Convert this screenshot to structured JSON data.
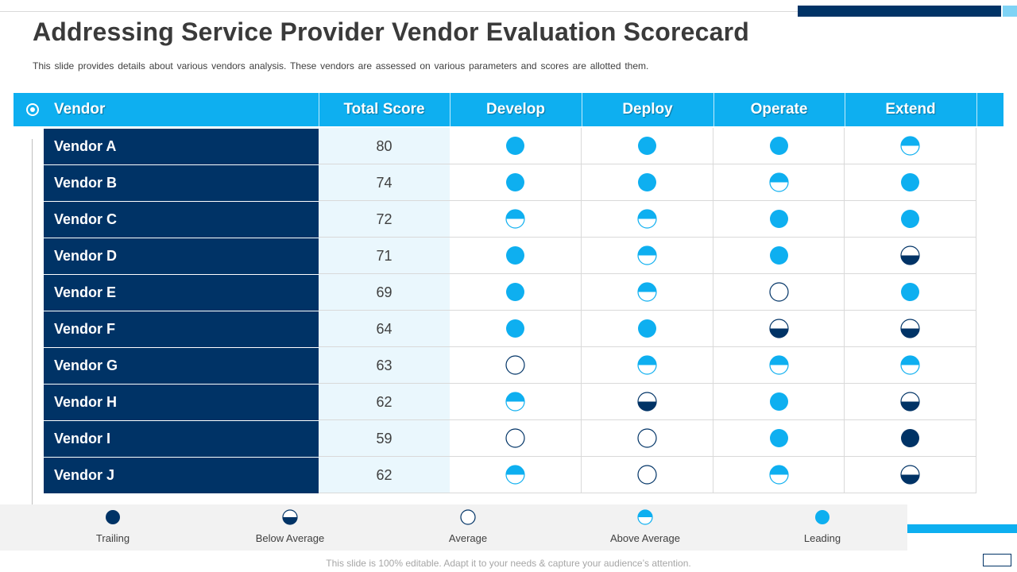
{
  "slide": {
    "title": "Addressing Service Provider Vendor Evaluation Scorecard",
    "subtitle": "This slide provides details about various vendors analysis. These vendors are assessed on various parameters and scores are allotted them.",
    "footer": "This slide is 100% editable. Adapt it to your needs & capture your audience’s attention."
  },
  "colors": {
    "accent": "#0eaff0",
    "navy": "#003366",
    "score_bg": "#eaf7fd"
  },
  "table": {
    "headers": [
      "Vendor",
      "Total Score",
      "Develop",
      "Deploy",
      "Operate",
      "Extend"
    ],
    "rows": [
      {
        "vendor": "Vendor A",
        "score": "80",
        "ratings": [
          "leading",
          "leading",
          "leading",
          "above-average"
        ]
      },
      {
        "vendor": "Vendor B",
        "score": "74",
        "ratings": [
          "leading",
          "leading",
          "above-average",
          "leading"
        ]
      },
      {
        "vendor": "Vendor C",
        "score": "72",
        "ratings": [
          "above-average",
          "above-average",
          "leading",
          "leading"
        ]
      },
      {
        "vendor": "Vendor D",
        "score": "71",
        "ratings": [
          "leading",
          "above-average",
          "leading",
          "below-average"
        ]
      },
      {
        "vendor": "Vendor E",
        "score": "69",
        "ratings": [
          "leading",
          "above-average",
          "average",
          "leading"
        ]
      },
      {
        "vendor": "Vendor F",
        "score": "64",
        "ratings": [
          "leading",
          "leading",
          "below-average",
          "below-average"
        ]
      },
      {
        "vendor": "Vendor G",
        "score": "63",
        "ratings": [
          "average",
          "above-average",
          "above-average",
          "above-average"
        ]
      },
      {
        "vendor": "Vendor H",
        "score": "62",
        "ratings": [
          "above-average",
          "below-average",
          "leading",
          "below-average"
        ]
      },
      {
        "vendor": "Vendor I",
        "score": "59",
        "ratings": [
          "average",
          "average",
          "leading",
          "trailing"
        ]
      },
      {
        "vendor": "Vendor J",
        "score": "62",
        "ratings": [
          "above-average",
          "average",
          "above-average",
          "below-average"
        ]
      }
    ]
  },
  "legend": [
    {
      "key": "trailing",
      "label": "Trailing"
    },
    {
      "key": "below-average",
      "label": "Below Average"
    },
    {
      "key": "average",
      "label": "Average"
    },
    {
      "key": "above-average",
      "label": "Above Average"
    },
    {
      "key": "leading",
      "label": "Leading"
    }
  ]
}
